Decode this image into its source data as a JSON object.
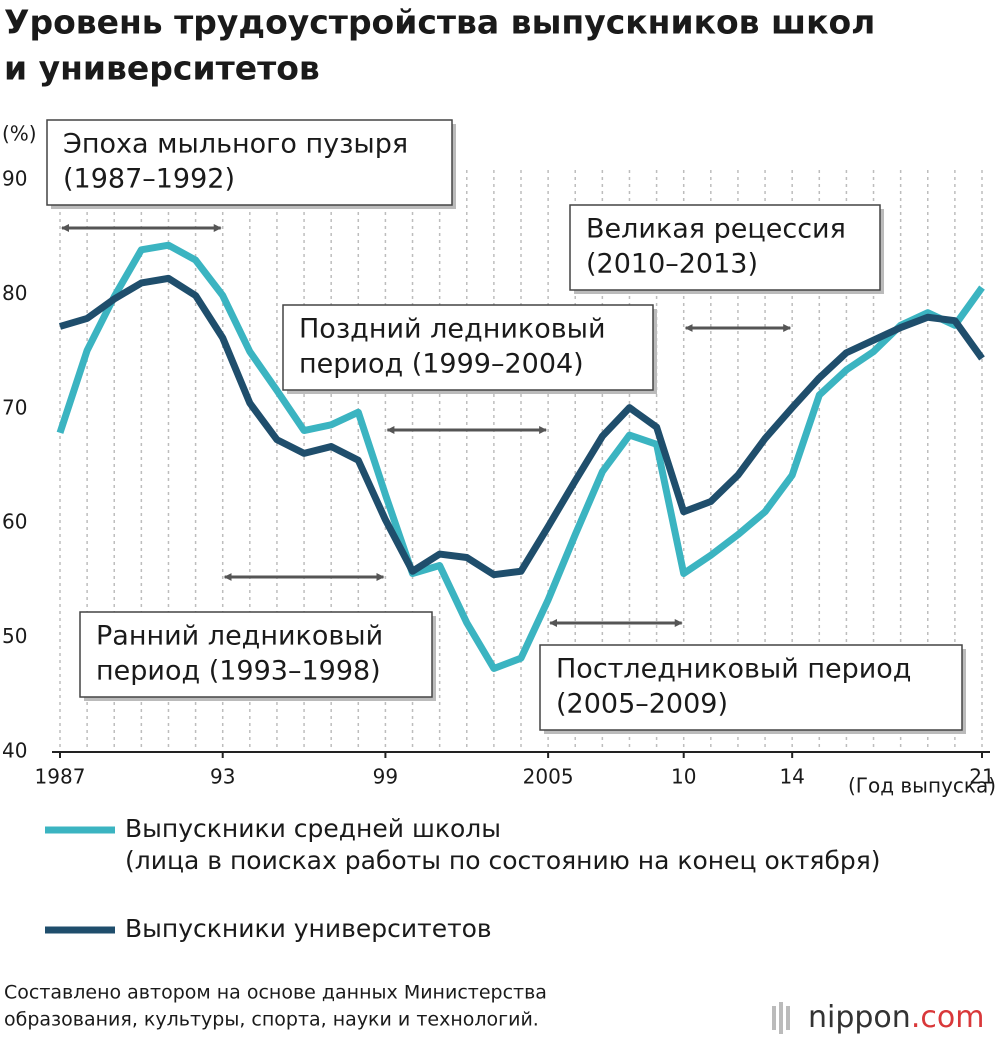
{
  "chart_data": {
    "type": "line",
    "title": [
      "Уровень трудоустройства выпускников школ",
      "и университетов"
    ],
    "y_label": "(%)",
    "x_label": "(Год выпуска)",
    "x": [
      1987,
      1988,
      1989,
      1990,
      1991,
      1992,
      1993,
      1994,
      1995,
      1996,
      1997,
      1998,
      1999,
      2000,
      2001,
      2002,
      2003,
      2004,
      2005,
      2006,
      2007,
      2008,
      2009,
      2010,
      2011,
      2012,
      2013,
      2014,
      2015,
      2016,
      2017,
      2018,
      2019,
      2020,
      2021
    ],
    "xlim": [
      1987,
      2021
    ],
    "xticks": [
      1987,
      {
        "value": 1993,
        "label": "93"
      },
      {
        "value": 1999,
        "label": "99"
      },
      2005,
      {
        "value": 2010,
        "label": "10"
      },
      {
        "value": 2014,
        "label": "14"
      },
      {
        "value": 2021,
        "label": "21"
      }
    ],
    "ylim": [
      40,
      90
    ],
    "yticks": [
      40,
      50,
      60,
      70,
      80,
      90
    ],
    "vertical_grid": true,
    "series": [
      {
        "name": "Выпускники средней школы",
        "description": "(лица в поисках работы по состоянию на конец октября)",
        "color": "#3bb4c1",
        "values": [
          67.9,
          75.1,
          79.8,
          83.9,
          84.3,
          83.0,
          79.9,
          75.0,
          71.6,
          68.1,
          68.6,
          69.7,
          62.5,
          55.6,
          56.3,
          51.3,
          47.3,
          48.2,
          53.3,
          59.0,
          64.5,
          67.7,
          66.9,
          55.6,
          57.2,
          59.0,
          61.0,
          64.2,
          71.2,
          73.4,
          75.0,
          77.3,
          78.4,
          77.3,
          80.6
        ]
      },
      {
        "name": "Выпускники университетов",
        "color": "#1f4e6c",
        "values": [
          77.2,
          77.9,
          79.6,
          81.0,
          81.4,
          79.9,
          76.2,
          70.5,
          67.3,
          66.1,
          66.7,
          65.5,
          60.3,
          55.8,
          57.3,
          57.0,
          55.5,
          55.8,
          59.7,
          63.7,
          67.6,
          70.1,
          68.4,
          61.0,
          61.9,
          64.2,
          67.4,
          70.1,
          72.7,
          74.9,
          76.0,
          77.1,
          78.0,
          77.7,
          74.4
        ]
      }
    ],
    "periods": [
      {
        "label": [
          "Эпоха мыльного пузыря",
          "(1987–1992)"
        ],
        "arrow": [
          1987,
          1993
        ]
      },
      {
        "label": [
          "Ранний ледниковый",
          "период (1993–1998)"
        ],
        "arrow": [
          1993,
          1999
        ]
      },
      {
        "label": [
          "Поздний ледниковый",
          "период (1999–2004)"
        ],
        "arrow": [
          1999,
          2005
        ]
      },
      {
        "label": [
          "Постледниковый период",
          "(2005–2009)"
        ],
        "arrow": [
          2005,
          2010
        ]
      },
      {
        "label": [
          "Великая рецессия",
          "(2010–2013)"
        ],
        "arrow": [
          2010,
          2014
        ]
      }
    ],
    "source": [
      "Составлено автором на основе данных Министерства",
      "образования, культуры, спорта, науки и технологий."
    ],
    "logo": [
      "nippon",
      ".com"
    ]
  }
}
